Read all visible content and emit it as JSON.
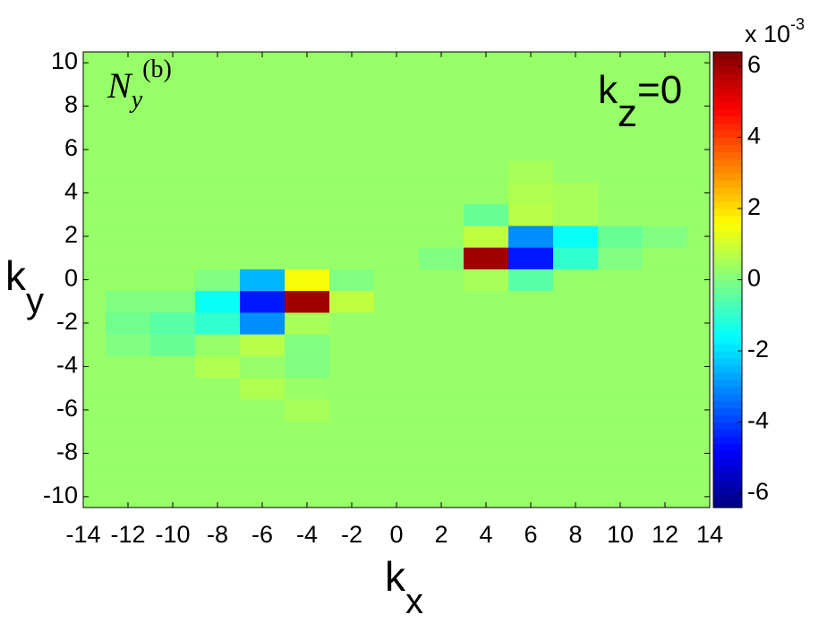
{
  "chart_data": {
    "type": "heatmap",
    "title": [
      "N",
      "y",
      "(b)"
    ],
    "annotation": [
      "k",
      "z",
      "=0"
    ],
    "x_label": [
      "k",
      "x"
    ],
    "y_label": [
      "k",
      "y"
    ],
    "colorbar_label": [
      "x 10",
      "-3"
    ],
    "x": [
      -14,
      -12,
      -10,
      -8,
      -6,
      -4,
      -2,
      0,
      2,
      4,
      6,
      8,
      10,
      12,
      14
    ],
    "y": [
      -10,
      -9,
      -8,
      -7,
      -6,
      -5,
      -4,
      -3,
      -2,
      -1,
      0,
      1,
      2,
      3,
      4,
      5,
      6,
      7,
      8,
      9,
      10
    ],
    "z": [
      [
        0.3,
        0.3,
        0.3,
        0.3,
        0.3,
        0.3,
        0.3,
        0.3,
        0.3,
        0.3,
        0.3,
        0.3,
        0.3,
        0.3,
        0.3
      ],
      [
        0.3,
        0.3,
        0.3,
        0.3,
        0.3,
        0.3,
        0.3,
        0.3,
        0.3,
        0.3,
        0.3,
        0.3,
        0.3,
        0.3,
        0.3
      ],
      [
        0.3,
        0.3,
        0.3,
        0.3,
        0.3,
        0.3,
        0.3,
        0.3,
        0.3,
        0.3,
        0.3,
        0.3,
        0.3,
        0.3,
        0.3
      ],
      [
        0.3,
        0.3,
        0.3,
        0.3,
        0.3,
        0.3,
        0.3,
        0.3,
        0.3,
        0.3,
        0.3,
        0.3,
        0.3,
        0.3,
        0.3
      ],
      [
        0.3,
        0.3,
        0.3,
        0.3,
        0.3,
        0.5,
        0.3,
        0.3,
        0.3,
        0.3,
        0.3,
        0.3,
        0.3,
        0.3,
        0.3
      ],
      [
        0.3,
        0.3,
        0.3,
        0.3,
        0.6,
        0.3,
        0.3,
        0.3,
        0.3,
        0.3,
        0.3,
        0.3,
        0.3,
        0.3,
        0.3
      ],
      [
        0.3,
        0.3,
        0.3,
        0.6,
        0.3,
        0.0,
        0.3,
        0.3,
        0.3,
        0.3,
        0.3,
        0.3,
        0.3,
        0.3,
        0.3
      ],
      [
        0.3,
        0.0,
        -0.3,
        0.3,
        0.7,
        0.0,
        0.3,
        0.3,
        0.3,
        0.3,
        0.3,
        0.3,
        0.3,
        0.3,
        0.3
      ],
      [
        0.3,
        -0.2,
        -0.5,
        -1.0,
        -3.0,
        0.5,
        0.3,
        0.3,
        0.3,
        0.3,
        0.3,
        0.3,
        0.3,
        0.3,
        0.3
      ],
      [
        0.3,
        0.0,
        0.0,
        -1.5,
        -4.5,
        6.0,
        0.8,
        0.3,
        0.3,
        0.3,
        0.3,
        0.3,
        0.3,
        0.3,
        0.3
      ],
      [
        0.3,
        0.3,
        0.3,
        0.0,
        -2.5,
        1.5,
        0.0,
        0.3,
        0.3,
        0.5,
        -0.5,
        0.3,
        0.3,
        0.3,
        0.3
      ],
      [
        0.3,
        0.3,
        0.3,
        0.3,
        0.3,
        0.3,
        0.3,
        0.3,
        0.0,
        6.0,
        -4.5,
        -1.0,
        0.0,
        0.3,
        0.3
      ],
      [
        0.3,
        0.3,
        0.3,
        0.3,
        0.3,
        0.3,
        0.3,
        0.3,
        0.3,
        0.8,
        -3.0,
        -1.5,
        -0.3,
        0.0,
        0.3
      ],
      [
        0.3,
        0.3,
        0.3,
        0.3,
        0.3,
        0.3,
        0.3,
        0.3,
        0.3,
        -0.3,
        0.7,
        0.5,
        0.3,
        0.3,
        0.3
      ],
      [
        0.3,
        0.3,
        0.3,
        0.3,
        0.3,
        0.3,
        0.3,
        0.3,
        0.3,
        0.3,
        0.6,
        0.5,
        0.3,
        0.3,
        0.3
      ],
      [
        0.3,
        0.3,
        0.3,
        0.3,
        0.3,
        0.3,
        0.3,
        0.3,
        0.3,
        0.3,
        0.5,
        0.3,
        0.3,
        0.3,
        0.3
      ],
      [
        0.3,
        0.3,
        0.3,
        0.3,
        0.3,
        0.3,
        0.3,
        0.3,
        0.3,
        0.3,
        0.3,
        0.3,
        0.3,
        0.3,
        0.3
      ],
      [
        0.3,
        0.3,
        0.3,
        0.3,
        0.3,
        0.3,
        0.3,
        0.3,
        0.3,
        0.3,
        0.3,
        0.3,
        0.3,
        0.3,
        0.3
      ],
      [
        0.3,
        0.3,
        0.3,
        0.3,
        0.3,
        0.3,
        0.3,
        0.3,
        0.3,
        0.3,
        0.3,
        0.3,
        0.3,
        0.3,
        0.3
      ],
      [
        0.3,
        0.3,
        0.3,
        0.3,
        0.3,
        0.3,
        0.3,
        0.3,
        0.3,
        0.3,
        0.3,
        0.3,
        0.3,
        0.3,
        0.3
      ],
      [
        0.3,
        0.3,
        0.3,
        0.3,
        0.3,
        0.3,
        0.3,
        0.3,
        0.3,
        0.3,
        0.3,
        0.3,
        0.3,
        0.3,
        0.3
      ]
    ],
    "xlim": [
      -14,
      14
    ],
    "ylim": [
      -10.5,
      10.5
    ],
    "xticks": [
      -14,
      -12,
      -10,
      -8,
      -6,
      -4,
      -2,
      0,
      2,
      4,
      6,
      8,
      10,
      12,
      14
    ],
    "yticks": [
      -10,
      -8,
      -6,
      -4,
      -2,
      0,
      2,
      4,
      6,
      8,
      10
    ],
    "clim": [
      -6.4,
      6.4
    ],
    "cticks": [
      -6,
      -4,
      -2,
      0,
      2,
      4,
      6
    ],
    "colormap": "jet"
  }
}
